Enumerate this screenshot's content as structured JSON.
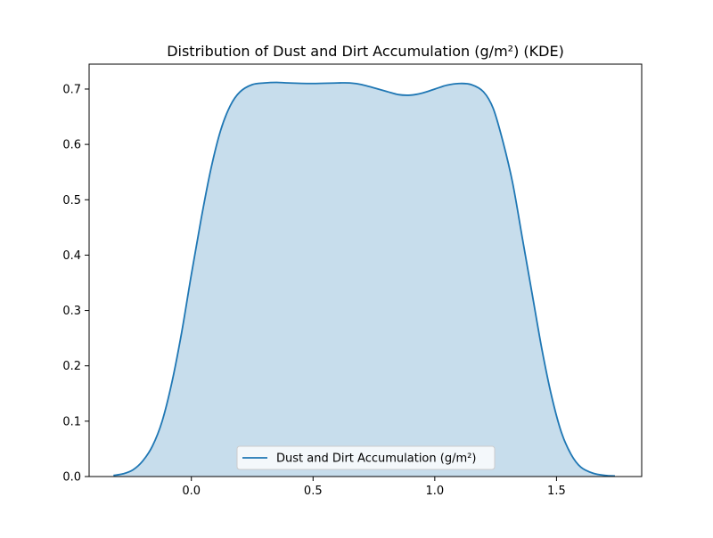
{
  "chart_data": {
    "type": "area",
    "title": "Distribution of Dust and Dirt Accumulation (g/m²) (KDE)",
    "xlabel": "",
    "ylabel": "",
    "xlim": [
      -0.42,
      1.85
    ],
    "ylim": [
      0,
      0.745
    ],
    "x_ticks": [
      0.0,
      0.5,
      1.0,
      1.5
    ],
    "x_tick_labels": [
      "0.0",
      "0.5",
      "1.0",
      "1.5"
    ],
    "y_ticks": [
      0.0,
      0.1,
      0.2,
      0.3,
      0.4,
      0.5,
      0.6,
      0.7
    ],
    "y_tick_labels": [
      "0.0",
      "0.1",
      "0.2",
      "0.3",
      "0.4",
      "0.5",
      "0.6",
      "0.7"
    ],
    "grid": false,
    "legend_position": "lower center",
    "series": [
      {
        "name": "Dust and Dirt Accumulation (g/m²)",
        "color": "#1f77b4",
        "fill_color": "#1f77b4",
        "fill_opacity": 0.25,
        "x": [
          -0.32,
          -0.28,
          -0.24,
          -0.2,
          -0.16,
          -0.12,
          -0.08,
          -0.04,
          0.0,
          0.04,
          0.08,
          0.12,
          0.16,
          0.2,
          0.25,
          0.3,
          0.35,
          0.4,
          0.5,
          0.6,
          0.65,
          0.7,
          0.8,
          0.85,
          0.9,
          0.95,
          1.0,
          1.05,
          1.1,
          1.15,
          1.2,
          1.24,
          1.28,
          1.32,
          1.36,
          1.4,
          1.44,
          1.48,
          1.52,
          1.56,
          1.6,
          1.65,
          1.7,
          1.74
        ],
        "y": [
          0.002,
          0.005,
          0.012,
          0.028,
          0.055,
          0.1,
          0.17,
          0.26,
          0.365,
          0.465,
          0.555,
          0.625,
          0.67,
          0.695,
          0.708,
          0.711,
          0.712,
          0.711,
          0.71,
          0.711,
          0.711,
          0.708,
          0.696,
          0.69,
          0.689,
          0.693,
          0.7,
          0.707,
          0.71,
          0.708,
          0.695,
          0.665,
          0.605,
          0.53,
          0.43,
          0.33,
          0.23,
          0.145,
          0.08,
          0.04,
          0.017,
          0.006,
          0.002,
          0.001
        ]
      }
    ]
  }
}
